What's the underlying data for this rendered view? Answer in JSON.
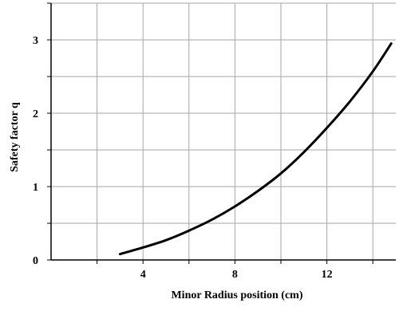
{
  "chart_data": {
    "type": "line",
    "title": "",
    "xlabel": "Minor Radius position (cm)",
    "ylabel": "Safety factor q",
    "xlim": [
      0,
      15
    ],
    "ylim": [
      0,
      3.5
    ],
    "x_ticks": [
      4,
      8,
      12
    ],
    "x_tick_labels": [
      "4",
      "8",
      "12"
    ],
    "x_grid": [
      2,
      4,
      6,
      8,
      10,
      12,
      14
    ],
    "y_ticks": [
      0,
      1,
      2,
      3
    ],
    "y_tick_labels": [
      "0",
      "1",
      "2",
      "3"
    ],
    "y_grid": [
      0.5,
      1,
      1.5,
      2,
      2.5,
      3,
      3.5
    ],
    "grid": true,
    "legend": "none",
    "series": [
      {
        "color": "#000000",
        "x": [
          3.0,
          4.0,
          5.0,
          6.0,
          7.0,
          8.0,
          9.0,
          10.0,
          11.0,
          12.0,
          13.0,
          14.0,
          14.8
        ],
        "y": [
          0.08,
          0.17,
          0.27,
          0.4,
          0.55,
          0.73,
          0.94,
          1.18,
          1.47,
          1.8,
          2.16,
          2.57,
          2.95
        ]
      }
    ]
  }
}
